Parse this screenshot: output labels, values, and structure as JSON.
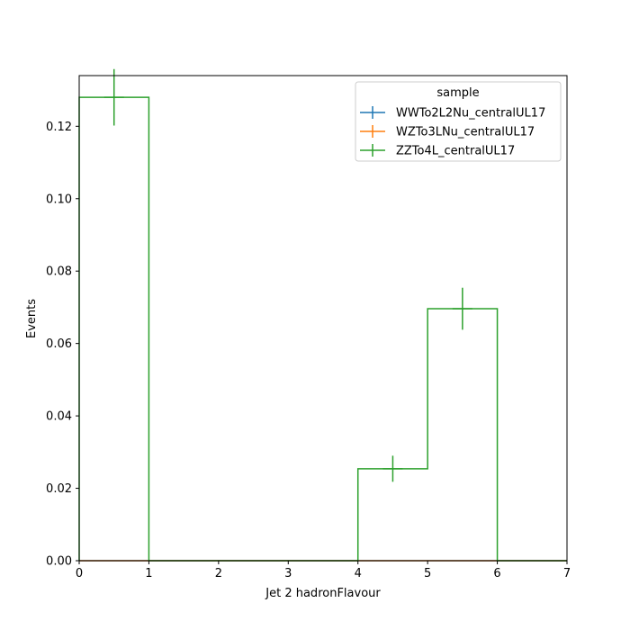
{
  "chart_data": {
    "type": "histogram",
    "xlabel": "Jet 2 hadronFlavour",
    "ylabel": "Events",
    "xlim": [
      0,
      7
    ],
    "ylim": [
      0,
      0.134
    ],
    "grid": false,
    "x_ticks": [
      0,
      1,
      2,
      3,
      4,
      5,
      6,
      7
    ],
    "x_tick_labels": [
      "0",
      "1",
      "2",
      "3",
      "4",
      "5",
      "6",
      "7"
    ],
    "y_ticks": [
      0,
      0.02,
      0.04,
      0.06,
      0.08,
      0.1,
      0.12
    ],
    "y_tick_labels": [
      "0.00",
      "0.02",
      "0.04",
      "0.06",
      "0.08",
      "0.10",
      "0.12"
    ],
    "bin_edges": [
      0,
      1,
      2,
      3,
      4,
      5,
      6,
      7
    ],
    "legend": {
      "title": "sample",
      "position": "upper right"
    },
    "series": [
      {
        "name": "WWTo2L2Nu_centralUL17",
        "color": "#1f77b4",
        "values": [
          0,
          0,
          0,
          0,
          0,
          0,
          0
        ],
        "errors": [
          0,
          0,
          0,
          0,
          0,
          0,
          0
        ]
      },
      {
        "name": "WZTo3LNu_centralUL17",
        "color": "#ff7f0e",
        "values": [
          0,
          0,
          0,
          0,
          0,
          0,
          0
        ],
        "errors": [
          0,
          0,
          0,
          0,
          0,
          0,
          0
        ]
      },
      {
        "name": "ZZTo4L_centralUL17",
        "color": "#2ca02c",
        "values": [
          0.128,
          0,
          0,
          0,
          0.0254,
          0.0696,
          0
        ],
        "errors": [
          0.0078,
          0,
          0,
          0,
          0.0036,
          0.0058,
          0
        ]
      }
    ]
  }
}
